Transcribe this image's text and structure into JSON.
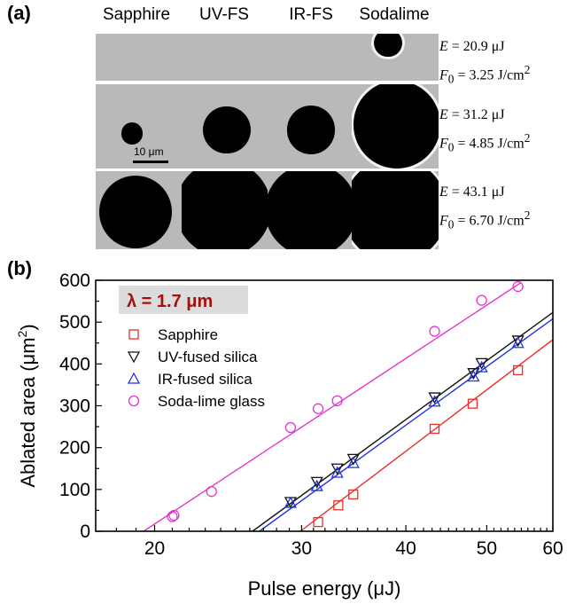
{
  "panel_a": {
    "label": "(a)",
    "columns": [
      "Sapphire",
      "UV-FS",
      "IR-FS",
      "Sodalime"
    ],
    "scale_bar": "10 μm",
    "conditions": [
      {
        "energy_lhs": "E",
        "energy_rhs": " = 20.9 μJ",
        "fluence_lhs": "F",
        "fluence_sub": "0",
        "fluence_rhs": " = 3.25 J/cm",
        "sup": "2"
      },
      {
        "energy_lhs": "E",
        "energy_rhs": " = 31.2 μJ",
        "fluence_lhs": "F",
        "fluence_sub": "0",
        "fluence_rhs": " = 4.85 J/cm",
        "sup": "2"
      },
      {
        "energy_lhs": "E",
        "energy_rhs": " = 43.1 μJ",
        "fluence_lhs": "F",
        "fluence_sub": "0",
        "fluence_rhs": " = 6.70 J/cm",
        "sup": "2"
      }
    ],
    "spot_diameters_um": [
      [
        0,
        0,
        0,
        7.6
      ],
      [
        6.0,
        13.0,
        13.2,
        24.0
      ],
      [
        20.2,
        26.2,
        25.6,
        28.6
      ]
    ]
  },
  "panel_b": {
    "label": "(b)",
    "wavelength_label": "λ = 1.7 μm",
    "colors": {
      "Sapphire": "#e8312a",
      "UV-fused silica": "#111111",
      "IR-fused silica": "#1f33e0",
      "Soda-lime glass": "#e536d0",
      "label_bg": "#dcdcdc",
      "label_text": "#a31010"
    }
  },
  "chart_data": {
    "type": "scatter",
    "xlabel": "Pulse energy (μJ)",
    "ylabel": "Ablated area (μm",
    "ylabel_sup": "2",
    "ylabel_tail": ")",
    "x_scale": "log",
    "xlim": [
      17,
      60
    ],
    "ylim": [
      0,
      600
    ],
    "xticks": [
      20,
      30,
      40,
      50,
      60
    ],
    "xtick_labels": [
      "20",
      "30",
      "40",
      "50",
      "60"
    ],
    "yticks": [
      0,
      100,
      200,
      300,
      400,
      500,
      600
    ],
    "ytick_labels": [
      "0",
      "100",
      "200",
      "300",
      "400",
      "500",
      "600"
    ],
    "legend_position": "top-left",
    "series": [
      {
        "name": "Sapphire",
        "marker": "square",
        "x": [
          31.4,
          33.2,
          34.6,
          43.3,
          48.1,
          54.5
        ],
        "y": [
          22,
          62,
          88,
          245,
          305,
          385
        ],
        "fit": {
          "x": [
            29.9,
            60
          ],
          "y": [
            0,
            458
          ]
        }
      },
      {
        "name": "UV-fused silica",
        "marker": "triangle-down",
        "x": [
          29.1,
          31.3,
          33.1,
          34.6,
          43.3,
          48.2,
          49.3,
          54.5
        ],
        "y": [
          70,
          118,
          150,
          173,
          320,
          378,
          402,
          456
        ],
        "fit": {
          "x": [
            26.2,
            60
          ],
          "y": [
            0,
            523
          ]
        }
      },
      {
        "name": "IR-fused silica",
        "marker": "triangle-up",
        "x": [
          29.1,
          31.3,
          33.1,
          34.6,
          43.3,
          48.2,
          49.3,
          54.5
        ],
        "y": [
          68,
          108,
          140,
          163,
          310,
          370,
          392,
          450
        ],
        "fit": {
          "x": [
            26.7,
            60
          ],
          "y": [
            0,
            508
          ]
        }
      },
      {
        "name": "Soda-lime glass",
        "marker": "circle",
        "x": [
          21.0,
          21.1,
          23.4,
          29.1,
          31.4,
          33.1,
          43.3,
          49.3,
          54.5
        ],
        "y": [
          35,
          38,
          95,
          248,
          293,
          312,
          478,
          552,
          585
        ],
        "fit": {
          "x": [
            19.4,
            55
          ],
          "y": [
            0,
            595
          ]
        }
      }
    ]
  }
}
